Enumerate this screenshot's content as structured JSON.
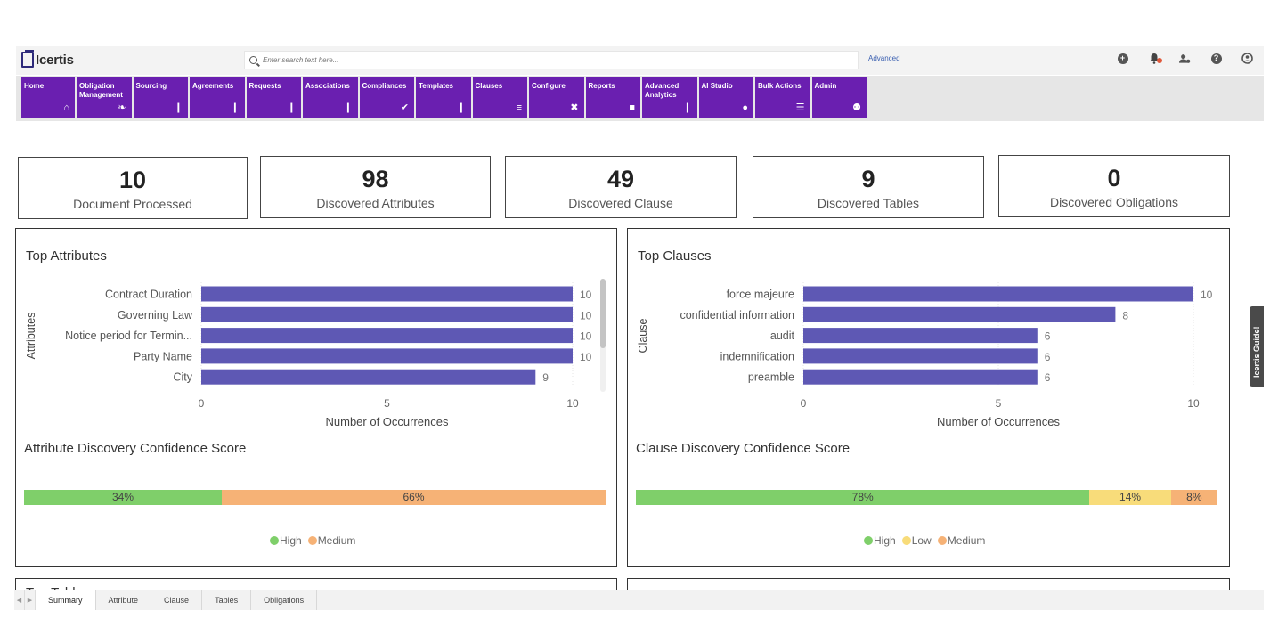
{
  "header": {
    "logo_text": "Icertis",
    "search_placeholder": "Enter search text here...",
    "advanced_label": "Advanced",
    "icons": [
      "plus-circle-icon",
      "bell-icon",
      "users-icon",
      "help-icon",
      "user-circle-icon"
    ],
    "notification_dot_color": "#e0583a"
  },
  "nav": {
    "color": "#6a1fb0",
    "items": [
      {
        "label": "Home",
        "icon": "home-icon"
      },
      {
        "label": "Obligation Management",
        "icon": "handshake-icon"
      },
      {
        "label": "Sourcing",
        "icon": "document-icon"
      },
      {
        "label": "Agreements",
        "icon": "document-icon"
      },
      {
        "label": "Requests",
        "icon": "document-icon"
      },
      {
        "label": "Associations",
        "icon": "document-icon"
      },
      {
        "label": "Compliances",
        "icon": "check-icon"
      },
      {
        "label": "Templates",
        "icon": "document-icon"
      },
      {
        "label": "Clauses",
        "icon": "list-icon"
      },
      {
        "label": "Configure",
        "icon": "tools-icon"
      },
      {
        "label": "Reports",
        "icon": "clipboard-icon"
      },
      {
        "label": "Advanced Analytics",
        "icon": "document-icon"
      },
      {
        "label": "AI Studio",
        "icon": "lightbulb-icon"
      },
      {
        "label": "Bulk Actions",
        "icon": "layers-icon"
      },
      {
        "label": "Admin",
        "icon": "users-icon"
      }
    ]
  },
  "kpis": [
    {
      "value": "10",
      "label": "Document Processed"
    },
    {
      "value": "98",
      "label": "Discovered Attributes"
    },
    {
      "value": "49",
      "label": "Discovered Clause"
    },
    {
      "value": "9",
      "label": "Discovered Tables"
    },
    {
      "value": "0",
      "label": "Discovered Obligations"
    }
  ],
  "attributes_panel": {
    "title": "Top Attributes",
    "conf_title": "Attribute Discovery Confidence Score",
    "conf_segments": [
      {
        "label": "34%",
        "value": 34,
        "color": "#7fcf6a"
      },
      {
        "label": "66%",
        "value": 66,
        "color": "#f6b276"
      }
    ],
    "legend": [
      {
        "label": "High",
        "color": "#7fcf6a"
      },
      {
        "label": "Medium",
        "color": "#f6b276"
      }
    ]
  },
  "clauses_panel": {
    "title": "Top Clauses",
    "conf_title": "Clause Discovery Confidence Score",
    "conf_segments": [
      {
        "label": "78%",
        "value": 78,
        "color": "#7fcf6a"
      },
      {
        "label": "14%",
        "value": 14,
        "color": "#f8dc7a"
      },
      {
        "label": "8%",
        "value": 8,
        "color": "#f6b276"
      }
    ],
    "legend": [
      {
        "label": "High",
        "color": "#7fcf6a"
      },
      {
        "label": "Low",
        "color": "#f8dc7a"
      },
      {
        "label": "Medium",
        "color": "#f6b276"
      }
    ]
  },
  "chart_data": [
    {
      "type": "bar",
      "orientation": "horizontal",
      "title": "Top Attributes",
      "categories": [
        "Contract Duration",
        "Governing Law",
        "Notice period for Termin...",
        "Party Name",
        "City"
      ],
      "values": [
        10,
        10,
        10,
        10,
        9
      ],
      "xlabel": "Number of Occurrences",
      "ylabel": "Attributes",
      "xlim": [
        0,
        10
      ],
      "xticks": [
        0,
        5,
        10
      ],
      "color": "#5e58b4"
    },
    {
      "type": "bar",
      "orientation": "horizontal",
      "title": "Top Clauses",
      "categories": [
        "force majeure",
        "confidential information",
        "audit",
        "indemnification",
        "preamble"
      ],
      "values": [
        10,
        8,
        6,
        6,
        6
      ],
      "xlabel": "Number of Occurrences",
      "ylabel": "Clause",
      "xlim": [
        0,
        10
      ],
      "xticks": [
        0,
        5,
        10
      ],
      "color": "#5e58b4"
    }
  ],
  "side_tab": {
    "label": "Icertis Guide!"
  },
  "tabs": [
    {
      "label": "Summary",
      "active": true
    },
    {
      "label": "Attribute",
      "active": false
    },
    {
      "label": "Clause",
      "active": false
    },
    {
      "label": "Tables",
      "active": false
    },
    {
      "label": "Obligations",
      "active": false
    }
  ],
  "lower_panel_title": "Top Tables"
}
